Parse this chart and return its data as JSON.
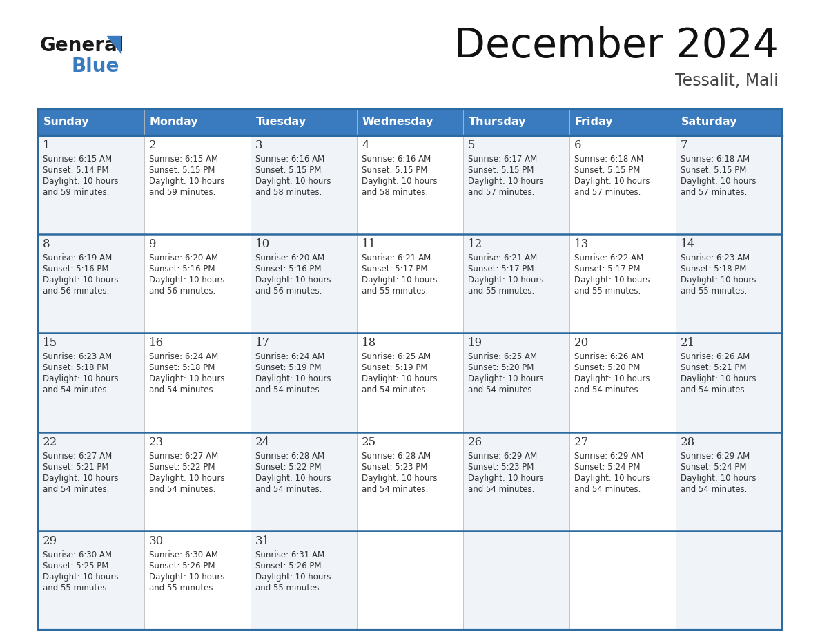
{
  "title": "December 2024",
  "subtitle": "Tessalit, Mali",
  "header_color": "#3a7abf",
  "header_text_color": "#ffffff",
  "border_color": "#3a7abf",
  "row_border_color": "#2d6aa0",
  "text_color": "#333333",
  "cell_bg_even": "#f0f4f8",
  "cell_bg_odd": "#ffffff",
  "days_of_week": [
    "Sunday",
    "Monday",
    "Tuesday",
    "Wednesday",
    "Thursday",
    "Friday",
    "Saturday"
  ],
  "weeks": [
    [
      {
        "day": 1,
        "sunrise": "6:15 AM",
        "sunset": "5:14 PM",
        "daylight": "10 hours",
        "daylight2": "and 59 minutes."
      },
      {
        "day": 2,
        "sunrise": "6:15 AM",
        "sunset": "5:15 PM",
        "daylight": "10 hours",
        "daylight2": "and 59 minutes."
      },
      {
        "day": 3,
        "sunrise": "6:16 AM",
        "sunset": "5:15 PM",
        "daylight": "10 hours",
        "daylight2": "and 58 minutes."
      },
      {
        "day": 4,
        "sunrise": "6:16 AM",
        "sunset": "5:15 PM",
        "daylight": "10 hours",
        "daylight2": "and 58 minutes."
      },
      {
        "day": 5,
        "sunrise": "6:17 AM",
        "sunset": "5:15 PM",
        "daylight": "10 hours",
        "daylight2": "and 57 minutes."
      },
      {
        "day": 6,
        "sunrise": "6:18 AM",
        "sunset": "5:15 PM",
        "daylight": "10 hours",
        "daylight2": "and 57 minutes."
      },
      {
        "day": 7,
        "sunrise": "6:18 AM",
        "sunset": "5:15 PM",
        "daylight": "10 hours",
        "daylight2": "and 57 minutes."
      }
    ],
    [
      {
        "day": 8,
        "sunrise": "6:19 AM",
        "sunset": "5:16 PM",
        "daylight": "10 hours",
        "daylight2": "and 56 minutes."
      },
      {
        "day": 9,
        "sunrise": "6:20 AM",
        "sunset": "5:16 PM",
        "daylight": "10 hours",
        "daylight2": "and 56 minutes."
      },
      {
        "day": 10,
        "sunrise": "6:20 AM",
        "sunset": "5:16 PM",
        "daylight": "10 hours",
        "daylight2": "and 56 minutes."
      },
      {
        "day": 11,
        "sunrise": "6:21 AM",
        "sunset": "5:17 PM",
        "daylight": "10 hours",
        "daylight2": "and 55 minutes."
      },
      {
        "day": 12,
        "sunrise": "6:21 AM",
        "sunset": "5:17 PM",
        "daylight": "10 hours",
        "daylight2": "and 55 minutes."
      },
      {
        "day": 13,
        "sunrise": "6:22 AM",
        "sunset": "5:17 PM",
        "daylight": "10 hours",
        "daylight2": "and 55 minutes."
      },
      {
        "day": 14,
        "sunrise": "6:23 AM",
        "sunset": "5:18 PM",
        "daylight": "10 hours",
        "daylight2": "and 55 minutes."
      }
    ],
    [
      {
        "day": 15,
        "sunrise": "6:23 AM",
        "sunset": "5:18 PM",
        "daylight": "10 hours",
        "daylight2": "and 54 minutes."
      },
      {
        "day": 16,
        "sunrise": "6:24 AM",
        "sunset": "5:18 PM",
        "daylight": "10 hours",
        "daylight2": "and 54 minutes."
      },
      {
        "day": 17,
        "sunrise": "6:24 AM",
        "sunset": "5:19 PM",
        "daylight": "10 hours",
        "daylight2": "and 54 minutes."
      },
      {
        "day": 18,
        "sunrise": "6:25 AM",
        "sunset": "5:19 PM",
        "daylight": "10 hours",
        "daylight2": "and 54 minutes."
      },
      {
        "day": 19,
        "sunrise": "6:25 AM",
        "sunset": "5:20 PM",
        "daylight": "10 hours",
        "daylight2": "and 54 minutes."
      },
      {
        "day": 20,
        "sunrise": "6:26 AM",
        "sunset": "5:20 PM",
        "daylight": "10 hours",
        "daylight2": "and 54 minutes."
      },
      {
        "day": 21,
        "sunrise": "6:26 AM",
        "sunset": "5:21 PM",
        "daylight": "10 hours",
        "daylight2": "and 54 minutes."
      }
    ],
    [
      {
        "day": 22,
        "sunrise": "6:27 AM",
        "sunset": "5:21 PM",
        "daylight": "10 hours",
        "daylight2": "and 54 minutes."
      },
      {
        "day": 23,
        "sunrise": "6:27 AM",
        "sunset": "5:22 PM",
        "daylight": "10 hours",
        "daylight2": "and 54 minutes."
      },
      {
        "day": 24,
        "sunrise": "6:28 AM",
        "sunset": "5:22 PM",
        "daylight": "10 hours",
        "daylight2": "and 54 minutes."
      },
      {
        "day": 25,
        "sunrise": "6:28 AM",
        "sunset": "5:23 PM",
        "daylight": "10 hours",
        "daylight2": "and 54 minutes."
      },
      {
        "day": 26,
        "sunrise": "6:29 AM",
        "sunset": "5:23 PM",
        "daylight": "10 hours",
        "daylight2": "and 54 minutes."
      },
      {
        "day": 27,
        "sunrise": "6:29 AM",
        "sunset": "5:24 PM",
        "daylight": "10 hours",
        "daylight2": "and 54 minutes."
      },
      {
        "day": 28,
        "sunrise": "6:29 AM",
        "sunset": "5:24 PM",
        "daylight": "10 hours",
        "daylight2": "and 54 minutes."
      }
    ],
    [
      {
        "day": 29,
        "sunrise": "6:30 AM",
        "sunset": "5:25 PM",
        "daylight": "10 hours",
        "daylight2": "and 55 minutes."
      },
      {
        "day": 30,
        "sunrise": "6:30 AM",
        "sunset": "5:26 PM",
        "daylight": "10 hours",
        "daylight2": "and 55 minutes."
      },
      {
        "day": 31,
        "sunrise": "6:31 AM",
        "sunset": "5:26 PM",
        "daylight": "10 hours",
        "daylight2": "and 55 minutes."
      },
      null,
      null,
      null,
      null
    ]
  ],
  "logo_general_color": "#1a1a1a",
  "logo_blue_color": "#3a7abf",
  "logo_triangle_color": "#3a7abf"
}
